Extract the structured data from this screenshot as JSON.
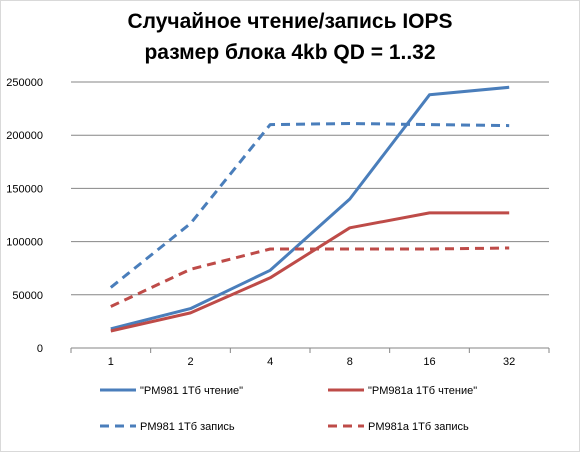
{
  "chart_data": {
    "type": "line",
    "title_lines": [
      "Случайное чтение/запись IOPS",
      "размер блока 4kb QD = 1..32"
    ],
    "categories": [
      "1",
      "2",
      "4",
      "8",
      "16",
      "32"
    ],
    "ylim": [
      0,
      250000
    ],
    "yticks": [
      0,
      50000,
      100000,
      150000,
      200000,
      250000
    ],
    "ytick_labels": [
      "0",
      "50000",
      "100000",
      "150000",
      "200000",
      "250000"
    ],
    "grid": true,
    "legend_position": "bottom",
    "series": [
      {
        "name": "\"PM981 1Тб чтение\"",
        "color": "#4a7ebb",
        "dashed": false,
        "values": [
          18000,
          37000,
          73000,
          140000,
          238000,
          245000
        ]
      },
      {
        "name": "\"PM981a 1Тб чтение\"",
        "color": "#be4b48",
        "dashed": false,
        "values": [
          16000,
          33000,
          66000,
          113000,
          127000,
          127000
        ]
      },
      {
        "name": "PM981 1Тб запись",
        "color": "#4a7ebb",
        "dashed": true,
        "values": [
          57000,
          117000,
          210000,
          211000,
          210000,
          209000
        ]
      },
      {
        "name": "PM981a 1Тб запись",
        "color": "#be4b48",
        "dashed": true,
        "values": [
          39000,
          74000,
          93000,
          93000,
          93000,
          94000
        ]
      }
    ]
  }
}
